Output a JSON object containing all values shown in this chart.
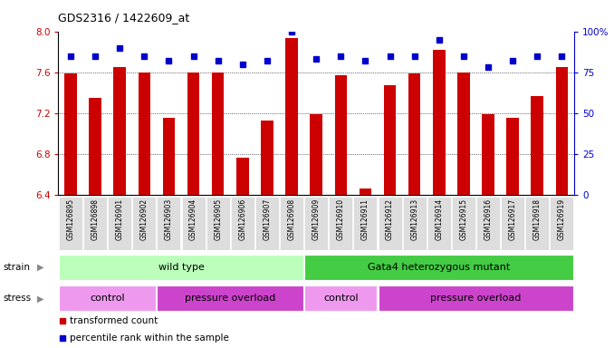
{
  "title": "GDS2316 / 1422609_at",
  "samples": [
    "GSM126895",
    "GSM126898",
    "GSM126901",
    "GSM126902",
    "GSM126903",
    "GSM126904",
    "GSM126905",
    "GSM126906",
    "GSM126907",
    "GSM126908",
    "GSM126909",
    "GSM126910",
    "GSM126911",
    "GSM126912",
    "GSM126913",
    "GSM126914",
    "GSM126915",
    "GSM126916",
    "GSM126917",
    "GSM126918",
    "GSM126919"
  ],
  "bar_values": [
    7.59,
    7.35,
    7.65,
    7.6,
    7.15,
    7.6,
    7.6,
    6.76,
    7.13,
    7.93,
    7.19,
    7.57,
    6.46,
    7.47,
    7.59,
    7.82,
    7.6,
    7.19,
    7.15,
    7.37,
    7.65
  ],
  "percentile_values": [
    85,
    85,
    90,
    85,
    82,
    85,
    82,
    80,
    82,
    100,
    83,
    85,
    82,
    85,
    85,
    95,
    85,
    78,
    82,
    85,
    85
  ],
  "bar_color": "#cc0000",
  "percentile_color": "#0000cc",
  "ymin": 6.4,
  "ymax": 8.0,
  "y_ticks": [
    6.4,
    6.8,
    7.2,
    7.6,
    8.0
  ],
  "y2min": 0,
  "y2max": 100,
  "y2_ticks": [
    0,
    25,
    50,
    75,
    100
  ],
  "y2_tick_labels": [
    "0",
    "25",
    "50",
    "75",
    "100%"
  ],
  "grid_values": [
    6.8,
    7.2,
    7.6
  ],
  "strain_labels": [
    {
      "text": "wild type",
      "start": 0,
      "end": 9,
      "color": "#bbffbb"
    },
    {
      "text": "Gata4 heterozygous mutant",
      "start": 10,
      "end": 20,
      "color": "#44cc44"
    }
  ],
  "stress_labels": [
    {
      "text": "control",
      "start": 0,
      "end": 3,
      "color": "#ee99ee"
    },
    {
      "text": "pressure overload",
      "start": 4,
      "end": 9,
      "color": "#cc44cc"
    },
    {
      "text": "control",
      "start": 10,
      "end": 12,
      "color": "#ee99ee"
    },
    {
      "text": "pressure overload",
      "start": 13,
      "end": 20,
      "color": "#cc44cc"
    }
  ],
  "legend_items": [
    {
      "color": "#cc0000",
      "label": "transformed count"
    },
    {
      "color": "#0000cc",
      "label": "percentile rank within the sample"
    }
  ],
  "background_color": "#ffffff",
  "bar_width": 0.5,
  "tick_label_bg": "#dddddd"
}
